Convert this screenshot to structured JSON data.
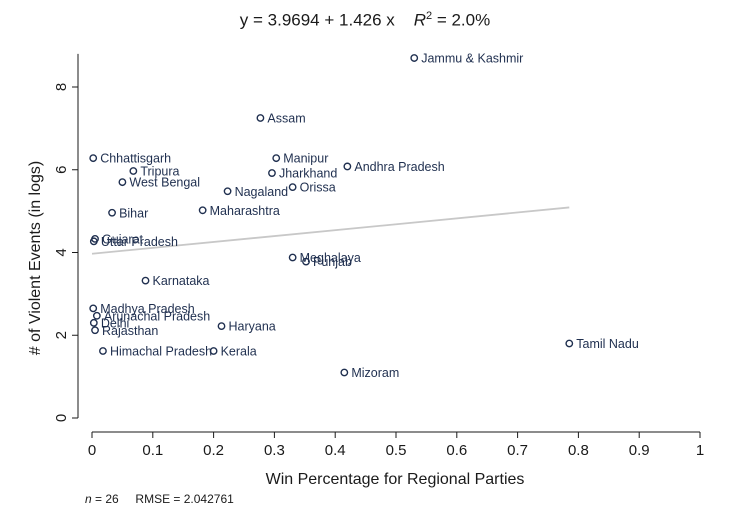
{
  "chart_data": {
    "type": "scatter",
    "title_parts": {
      "y_term": "y = 3.9694 + 1.426 x",
      "r2_symbol": "R",
      "r2_value": "= 2.0%"
    },
    "xlabel": "Win Percentage for Regional Parties",
    "ylabel": "# of Violent Events (in logs)",
    "xlim": [
      0,
      1
    ],
    "ylim": [
      0,
      9
    ],
    "xticks": [
      "0",
      "0.1",
      "0.2",
      "0.3",
      "0.4",
      "0.5",
      "0.6",
      "0.7",
      "0.8",
      "0.9",
      "1"
    ],
    "xtick_values": [
      0,
      0.1,
      0.2,
      0.3,
      0.4,
      0.5,
      0.6,
      0.7,
      0.8,
      0.9,
      1
    ],
    "yticks": [
      "0",
      "2",
      "4",
      "6",
      "8"
    ],
    "ytick_values": [
      0,
      2,
      4,
      6,
      8
    ],
    "grid": false,
    "fit_line": {
      "intercept": 3.9694,
      "slope": 1.426,
      "x_range": [
        0,
        0.785
      ]
    },
    "points": [
      {
        "label": "Jammu & Kashmir",
        "x": 0.53,
        "y": 8.7
      },
      {
        "label": "Assam",
        "x": 0.277,
        "y": 7.25
      },
      {
        "label": "Chhattisgarh",
        "x": 0.002,
        "y": 6.28
      },
      {
        "label": "Manipur",
        "x": 0.303,
        "y": 6.28
      },
      {
        "label": "Andhra Pradesh",
        "x": 0.42,
        "y": 6.08
      },
      {
        "label": "Tripura",
        "x": 0.068,
        "y": 5.97
      },
      {
        "label": "Jharkhand",
        "x": 0.296,
        "y": 5.92
      },
      {
        "label": "West Bengal",
        "x": 0.05,
        "y": 5.7
      },
      {
        "label": "Orissa",
        "x": 0.33,
        "y": 5.58
      },
      {
        "label": "Nagaland",
        "x": 0.223,
        "y": 5.48
      },
      {
        "label": "Maharashtra",
        "x": 0.182,
        "y": 5.02
      },
      {
        "label": "Bihar",
        "x": 0.033,
        "y": 4.96
      },
      {
        "label": "Gujarat",
        "x": 0.005,
        "y": 4.33
      },
      {
        "label": "Uttar Pradesh",
        "x": 0.003,
        "y": 4.27
      },
      {
        "label": "Meghalaya",
        "x": 0.33,
        "y": 3.88
      },
      {
        "label": "Punjab",
        "x": 0.352,
        "y": 3.78
      },
      {
        "label": "Karnataka",
        "x": 0.088,
        "y": 3.32
      },
      {
        "label": "Madhya Pradesh",
        "x": 0.002,
        "y": 2.65
      },
      {
        "label": "Arunachal Pradesh",
        "x": 0.008,
        "y": 2.47
      },
      {
        "label": "Delhi",
        "x": 0.003,
        "y": 2.3
      },
      {
        "label": "Haryana",
        "x": 0.213,
        "y": 2.22
      },
      {
        "label": "Rajasthan",
        "x": 0.005,
        "y": 2.12
      },
      {
        "label": "Tamil Nadu",
        "x": 0.785,
        "y": 1.8
      },
      {
        "label": "Himachal Pradesh",
        "x": 0.018,
        "y": 1.62
      },
      {
        "label": "Kerala",
        "x": 0.2,
        "y": 1.62
      },
      {
        "label": "Mizoram",
        "x": 0.415,
        "y": 1.1
      }
    ],
    "footnote": {
      "n_symbol": "n",
      "n_value": "= 26",
      "rmse": "RMSE =  2.042761"
    }
  },
  "colors": {
    "marker": "#1f2f4f",
    "label": "#1f2f4f",
    "fit_line": "#c8c8c8",
    "axis": "#1a1a1a"
  }
}
